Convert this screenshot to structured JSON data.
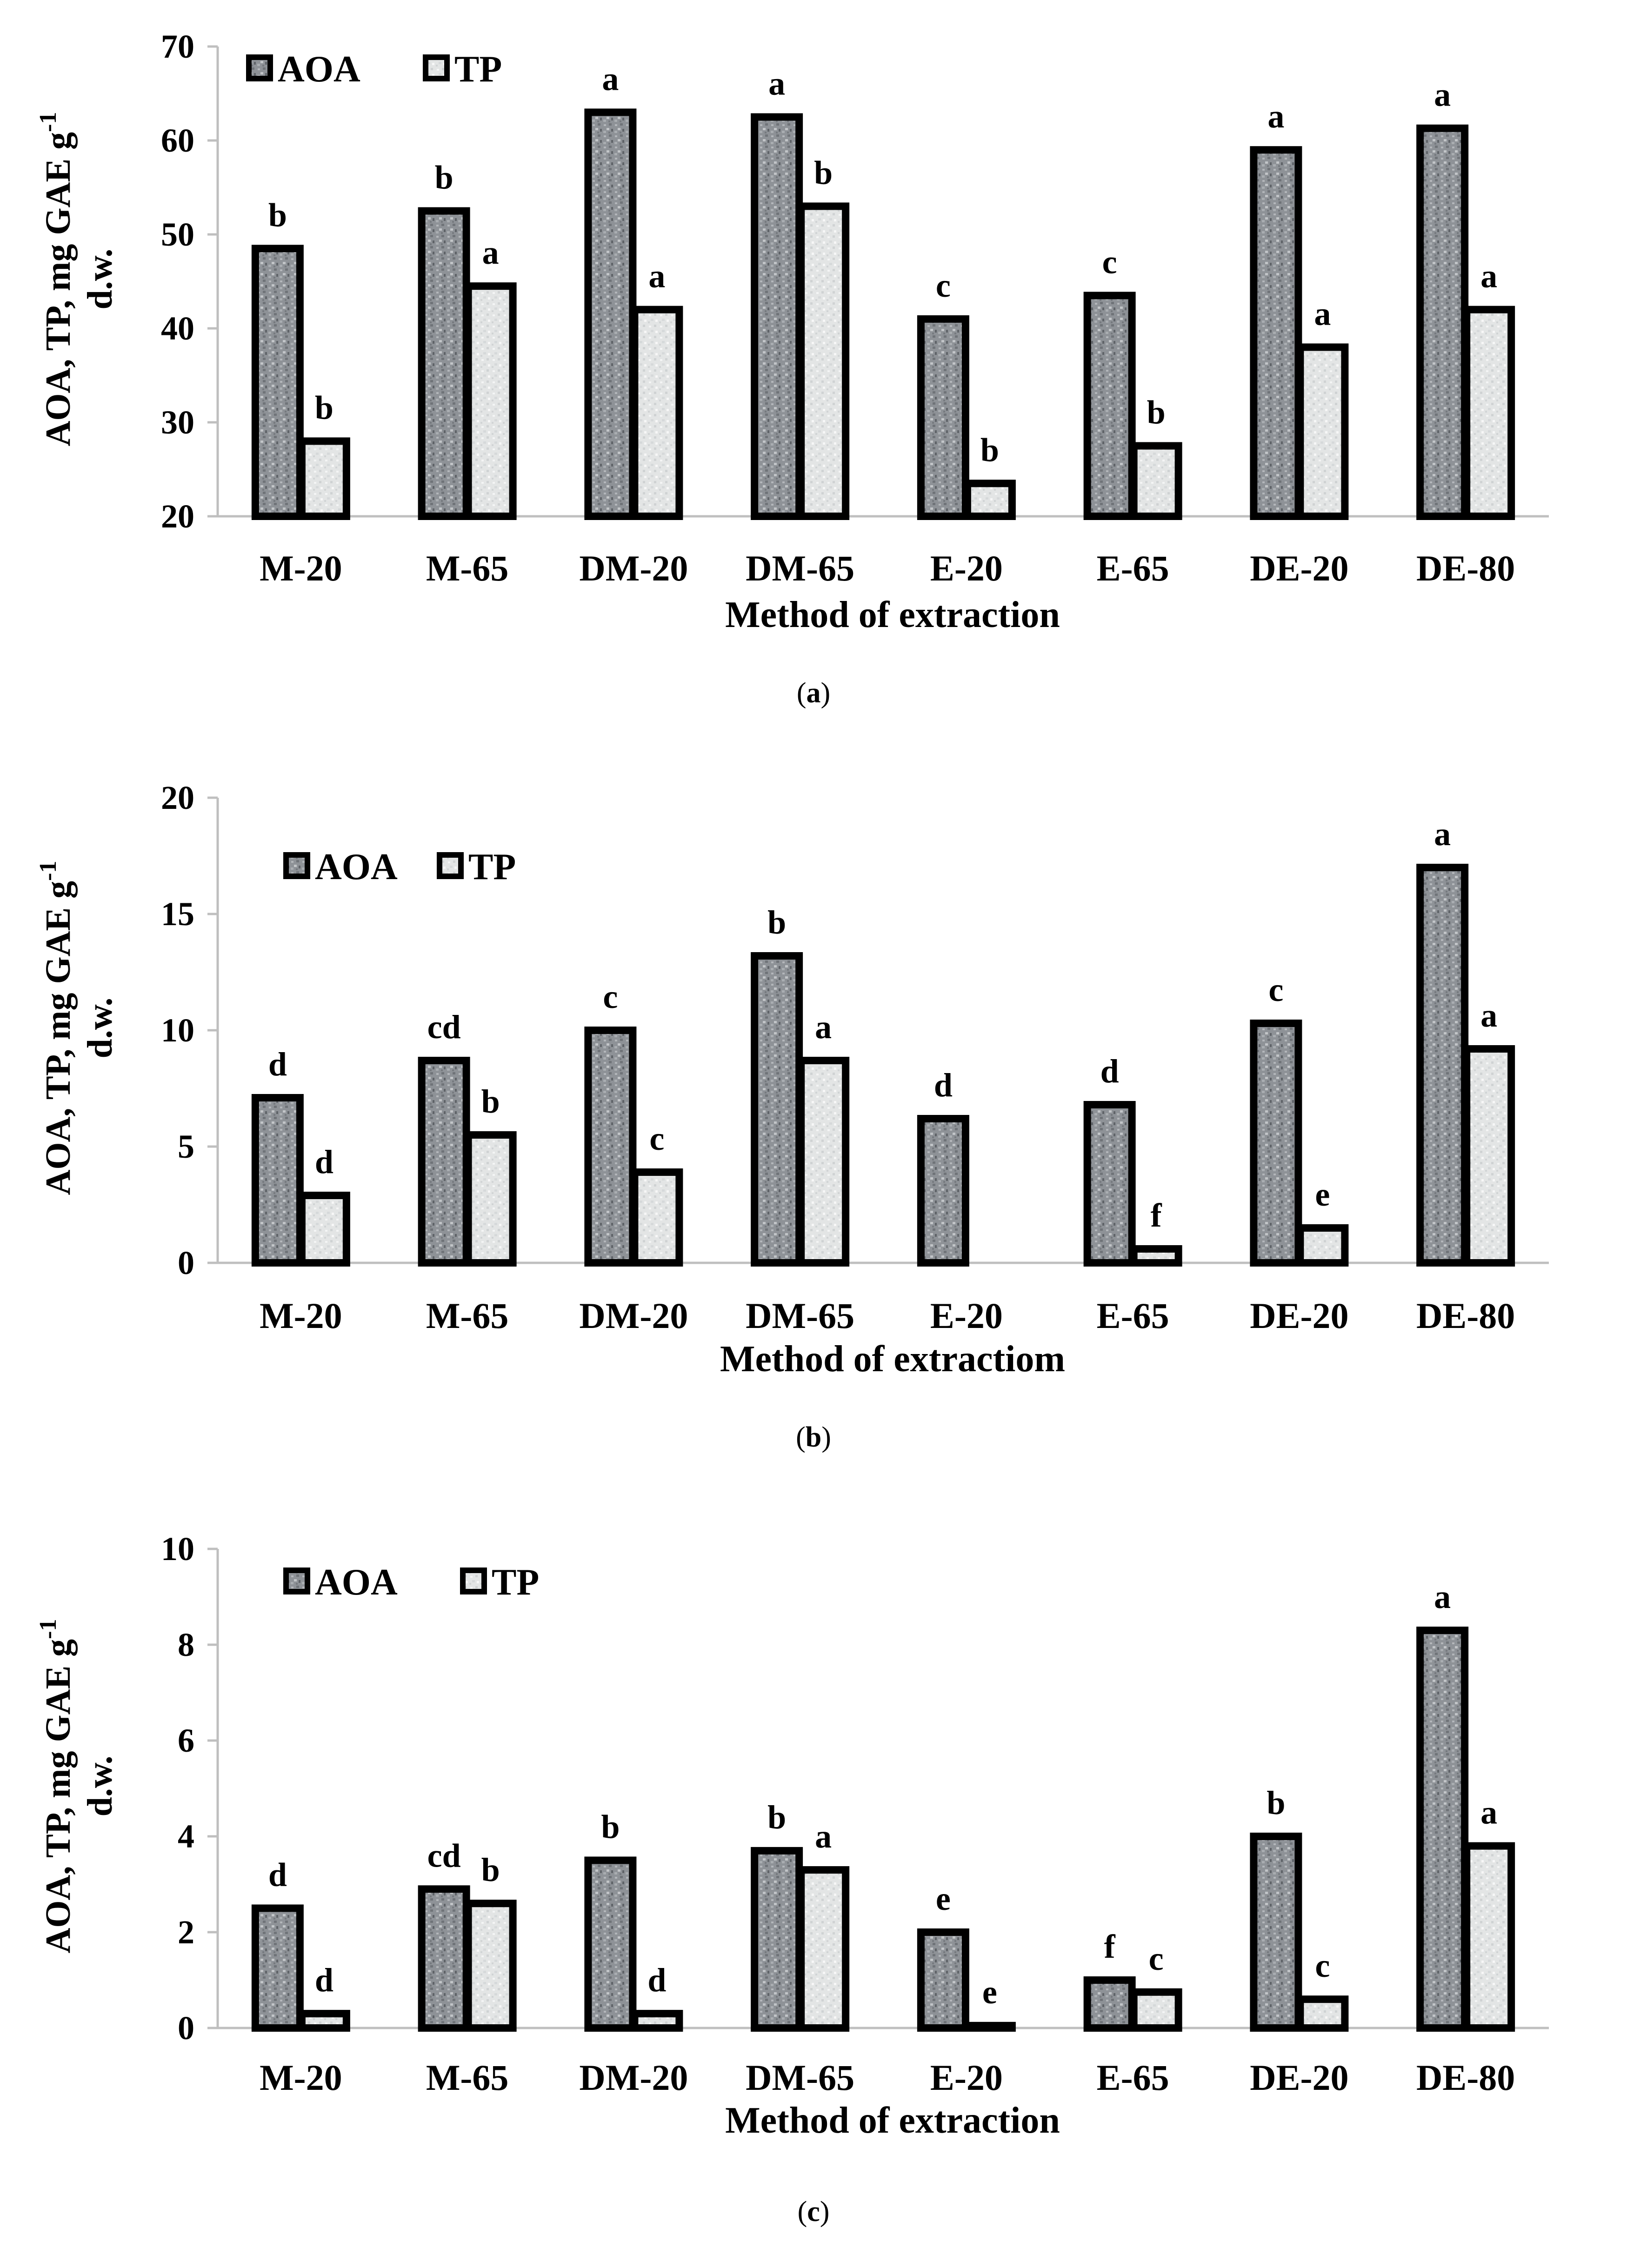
{
  "charts": [
    {
      "type": "bar",
      "panel": "(a)",
      "panel_letter": "a",
      "ylabel_line1": "AOA, TP, mg GAE g",
      "ylabel_sup": "-1",
      "ylabel_line2": "d.w.",
      "xlabel": "Method of extraction",
      "ylim": [
        20,
        70
      ],
      "yticks": [
        20,
        30,
        40,
        50,
        60,
        70
      ],
      "categories": [
        "M-20",
        "M-65",
        "DM-20",
        "DM-65",
        "E-20",
        "E-65",
        "DE-20",
        "DE-80"
      ],
      "legend": [
        "AOA",
        "TP"
      ],
      "series": [
        {
          "name": "AOA",
          "values": [
            48.5,
            52.5,
            63,
            62.5,
            41,
            43.5,
            59,
            61.3
          ],
          "letters": [
            "b",
            "b",
            "a",
            "a",
            "c",
            "c",
            "a",
            "a"
          ]
        },
        {
          "name": "TP",
          "values": [
            28,
            44.5,
            42,
            53,
            23.5,
            27.5,
            38,
            42
          ],
          "letters": [
            "b",
            "a",
            "a",
            "b",
            "b",
            "b",
            "a",
            "a"
          ]
        }
      ]
    },
    {
      "type": "bar",
      "panel": "(b)",
      "panel_letter": "b",
      "ylabel_line1": "AOA, TP, mg GAE g",
      "ylabel_sup": "-1",
      "ylabel_line2": "d.w.",
      "xlabel": "Method of extractiom",
      "ylim": [
        0,
        20
      ],
      "yticks": [
        0,
        5,
        10,
        15,
        20
      ],
      "categories": [
        "M-20",
        "M-65",
        "DM-20",
        "DM-65",
        "E-20",
        "E-65",
        "DE-20",
        "DE-80"
      ],
      "legend": [
        "AOA",
        "TP"
      ],
      "series": [
        {
          "name": "AOA",
          "values": [
            7.1,
            8.7,
            10,
            13.2,
            6.2,
            6.8,
            10.3,
            17
          ],
          "letters": [
            "d",
            "cd",
            "c",
            "b",
            "d",
            "d",
            "c",
            "a"
          ]
        },
        {
          "name": "TP",
          "values": [
            2.9,
            5.5,
            3.9,
            8.7,
            0,
            0.6,
            1.5,
            9.2
          ],
          "letters": [
            "d",
            "b",
            "c",
            "a",
            "",
            "f",
            "e",
            "a"
          ]
        }
      ]
    },
    {
      "type": "bar",
      "panel": "(c)",
      "panel_letter": "c",
      "ylabel_line1": "AOA, TP, mg GAE g",
      "ylabel_sup": "-1",
      "ylabel_line2": "d.w.",
      "xlabel": "Method of extraction",
      "ylim": [
        0,
        10
      ],
      "yticks": [
        0,
        2,
        4,
        6,
        8,
        10
      ],
      "categories": [
        "M-20",
        "M-65",
        "DM-20",
        "DM-65",
        "E-20",
        "E-65",
        "DE-20",
        "DE-80"
      ],
      "legend": [
        "AOA",
        "TP"
      ],
      "series": [
        {
          "name": "AOA",
          "values": [
            2.5,
            2.9,
            3.5,
            3.7,
            2,
            1,
            4,
            8.3
          ],
          "letters": [
            "d",
            "cd",
            "b",
            "b",
            "e",
            "f",
            "b",
            "a"
          ]
        },
        {
          "name": "TP",
          "values": [
            0.3,
            2.6,
            0.3,
            3.3,
            0.05,
            0.75,
            0.6,
            3.8
          ],
          "letters": [
            "d",
            "b",
            "d",
            "a",
            "e",
            "c",
            "c",
            "a"
          ]
        }
      ]
    }
  ],
  "colors": {
    "aoa_fill": "#8e9297",
    "tp_fill": "#e3e5e5",
    "outline": "#000000",
    "axis": "#bfbfbf"
  }
}
